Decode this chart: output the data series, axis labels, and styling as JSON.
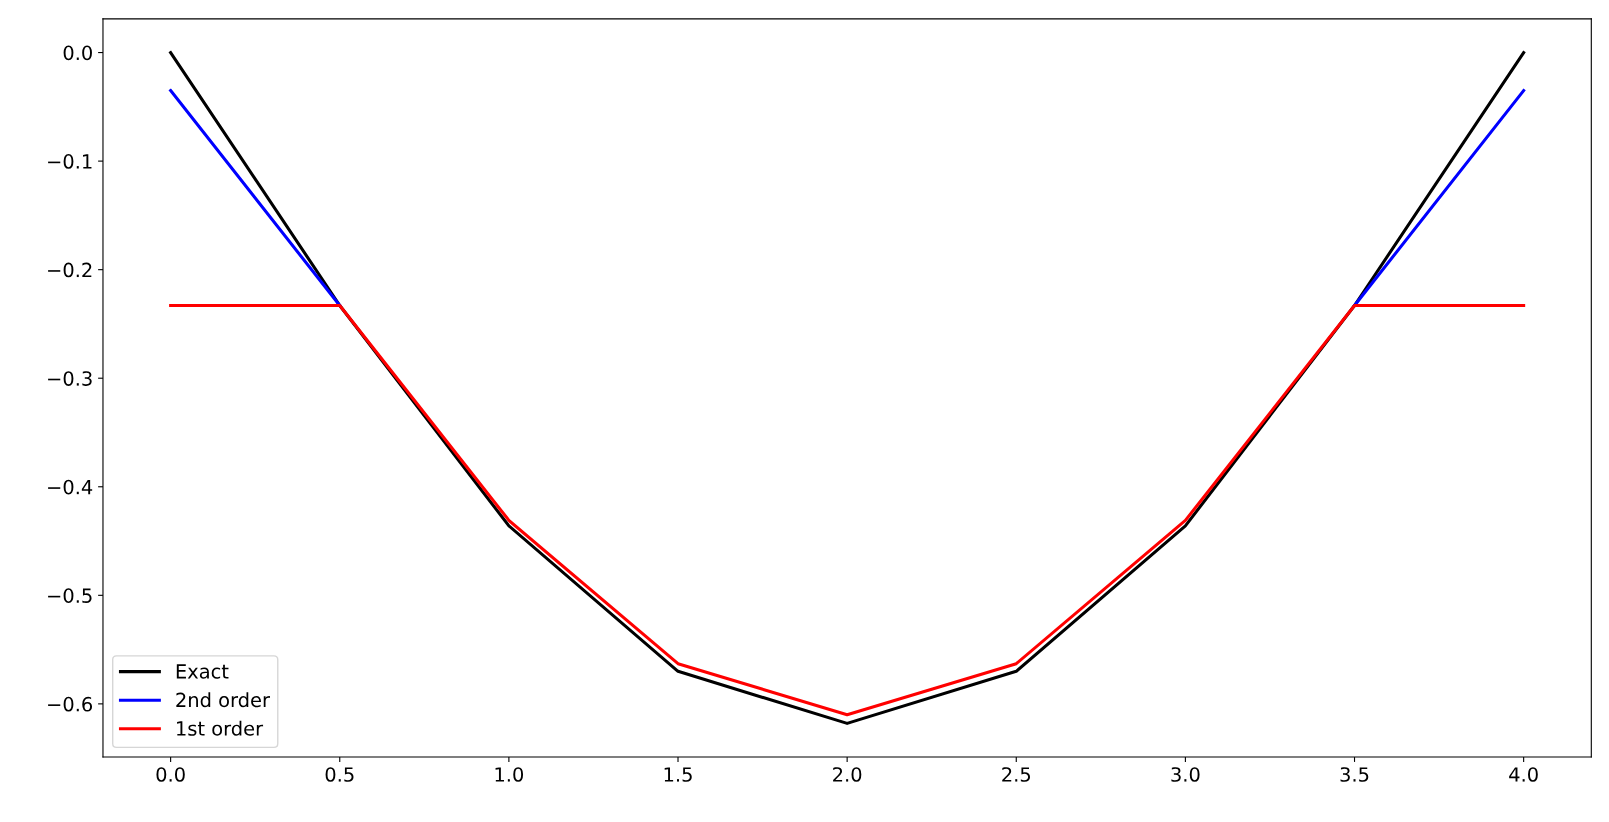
{
  "chart_data": {
    "type": "line",
    "x": [
      0,
      0.5,
      1.0,
      1.5,
      2.0,
      2.5,
      3.0,
      3.5,
      4.0
    ],
    "series": [
      {
        "name": "Exact",
        "color": "#000000",
        "values": [
          0,
          -0.233,
          -0.436,
          -0.57,
          -0.618,
          -0.57,
          -0.436,
          -0.233,
          0
        ]
      },
      {
        "name": "2nd order",
        "color": "#0000ff",
        "values": [
          -0.035,
          -0.233,
          null,
          null,
          null,
          null,
          null,
          -0.233,
          -0.035
        ]
      },
      {
        "name": "1st order",
        "color": "#ff0000",
        "values": [
          -0.233,
          -0.233,
          -0.431,
          -0.563,
          -0.61,
          -0.563,
          -0.431,
          -0.233,
          -0.233
        ]
      }
    ],
    "xlim": [
      -0.2,
      4.2
    ],
    "ylim": [
      -0.649,
      0.031
    ],
    "xticks": [
      {
        "value": 0,
        "label": "0.0"
      },
      0.5,
      {
        "value": 1,
        "label": "1.0"
      },
      1.5,
      {
        "value": 2,
        "label": "2.0"
      },
      2.5,
      {
        "value": 3,
        "label": "3.0"
      },
      3.5,
      {
        "value": 4,
        "label": "4.0"
      }
    ],
    "yticks": [
      {
        "value": -0.6,
        "label": "−0.6"
      },
      {
        "value": -0.5,
        "label": "−0.5"
      },
      {
        "value": -0.4,
        "label": "−0.4"
      },
      {
        "value": -0.3,
        "label": "−0.3"
      },
      {
        "value": -0.2,
        "label": "−0.2"
      },
      {
        "value": -0.1,
        "label": "−0.1"
      },
      {
        "value": 0,
        "label": "0.0"
      }
    ],
    "legend": "bottom left",
    "grid": false,
    "marker": "none",
    "line_style": "solid"
  }
}
